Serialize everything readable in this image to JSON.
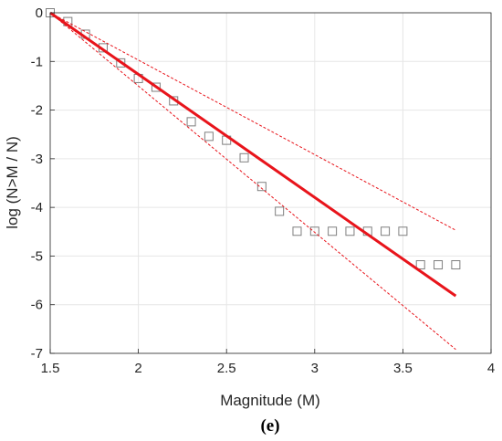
{
  "chart_data": {
    "type": "scatter",
    "xlabel": "Magnitude (M)",
    "ylabel": "log (N>M / N)",
    "panel_label": "(e)",
    "xlim": [
      1.5,
      4
    ],
    "ylim": [
      -7,
      0
    ],
    "xticks": [
      1.5,
      2,
      2.5,
      3,
      3.5,
      4
    ],
    "yticks": [
      0,
      -1,
      -2,
      -3,
      -4,
      -5,
      -6,
      -7
    ],
    "xtick_labels": [
      "1.5",
      "2",
      "2.5",
      "3",
      "3.5",
      "4"
    ],
    "ytick_labels": [
      "0",
      "-1",
      "-2",
      "-3",
      "-4",
      "-5",
      "-6",
      "-7"
    ],
    "grid": true,
    "series": [
      {
        "kind": "markers",
        "marker": "square",
        "color": "#7f7f7f",
        "points": [
          [
            1.5,
            0.0
          ],
          [
            1.6,
            -0.18
          ],
          [
            1.7,
            -0.44
          ],
          [
            1.8,
            -0.72
          ],
          [
            1.9,
            -1.03
          ],
          [
            2.0,
            -1.35
          ],
          [
            2.1,
            -1.53
          ],
          [
            2.2,
            -1.81
          ],
          [
            2.3,
            -2.24
          ],
          [
            2.4,
            -2.54
          ],
          [
            2.5,
            -2.62
          ],
          [
            2.6,
            -2.98
          ],
          [
            2.7,
            -3.57
          ],
          [
            2.8,
            -4.08
          ],
          [
            2.9,
            -4.49
          ],
          [
            3.0,
            -4.49
          ],
          [
            3.1,
            -4.49
          ],
          [
            3.2,
            -4.49
          ],
          [
            3.3,
            -4.49
          ],
          [
            3.4,
            -4.49
          ],
          [
            3.5,
            -4.49
          ],
          [
            3.6,
            -5.18
          ],
          [
            3.7,
            -5.18
          ],
          [
            3.8,
            -5.18
          ]
        ]
      },
      {
        "kind": "line",
        "style": "solid",
        "color": "#e8141b",
        "points": [
          [
            1.5,
            0.0
          ],
          [
            3.8,
            -5.82
          ]
        ]
      },
      {
        "kind": "line",
        "style": "dashed",
        "color": "#e8141b",
        "points": [
          [
            1.5,
            0.0
          ],
          [
            3.8,
            -4.47
          ]
        ]
      },
      {
        "kind": "line",
        "style": "dashed",
        "color": "#e8141b",
        "points": [
          [
            1.5,
            0.0
          ],
          [
            3.8,
            -6.92
          ]
        ]
      }
    ]
  }
}
